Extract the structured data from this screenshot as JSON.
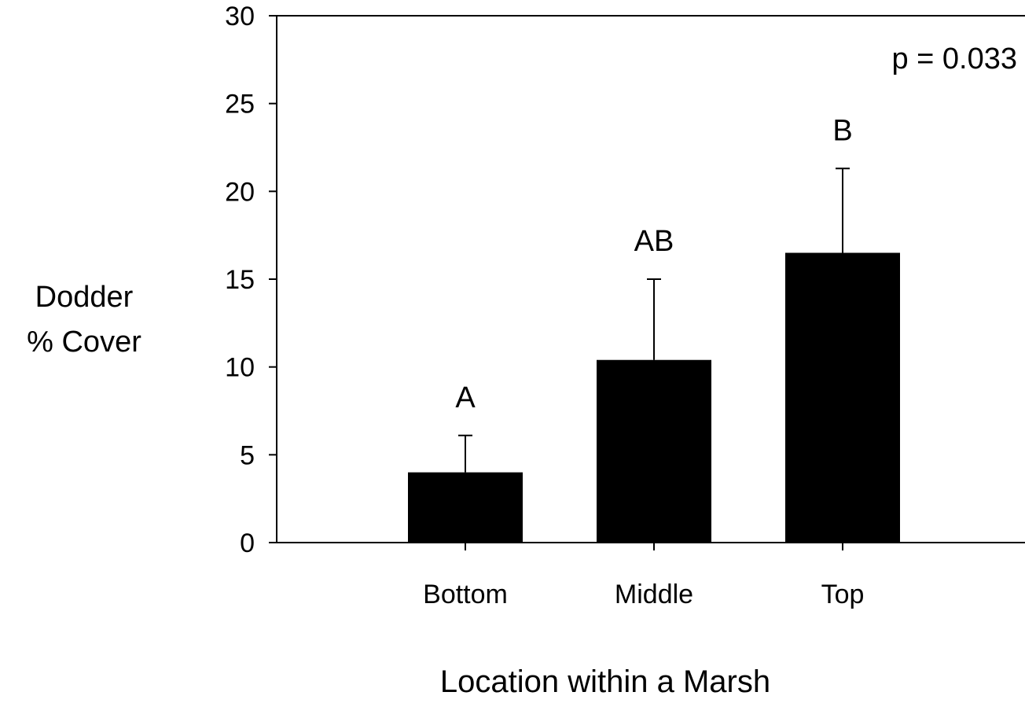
{
  "chart_data": {
    "type": "bar",
    "categories": [
      "Bottom",
      "Middle",
      "Top"
    ],
    "values": [
      4.0,
      10.4,
      16.5
    ],
    "errors": [
      2.1,
      4.6,
      4.8
    ],
    "significance_letters": [
      "A",
      "AB",
      "B"
    ],
    "ylabel_lines": [
      "Dodder",
      "% Cover"
    ],
    "xlabel": "Location within a Marsh",
    "annotation": "p = 0.033",
    "ylim": [
      0,
      30
    ],
    "yticks": [
      0,
      5,
      10,
      15,
      20,
      25,
      30
    ],
    "bar_color": "#000000",
    "grid": false
  }
}
